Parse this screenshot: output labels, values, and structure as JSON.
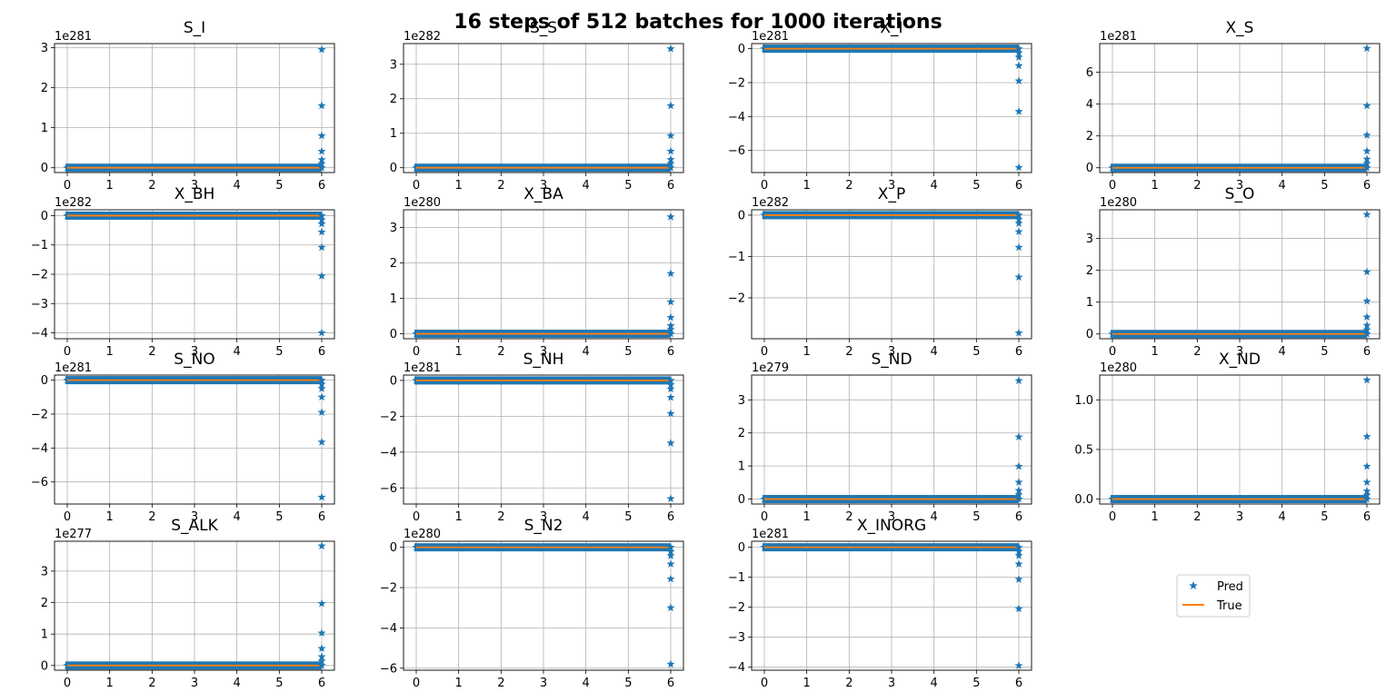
{
  "figure_title": "16 steps of 512 batches for 1000 iterations",
  "legend": {
    "entries": [
      {
        "label": "Pred",
        "color": "#1f77b4",
        "marker": "star"
      },
      {
        "label": "True",
        "color": "#ff7f0e",
        "marker": "line"
      }
    ],
    "placement": "empty 16th panel, center"
  },
  "colors": {
    "pred": "#1f77b4",
    "true": "#ff7f0e",
    "grid": "#b0b0b0"
  },
  "chart_data": [
    {
      "type": "scatter",
      "title": "S_I",
      "offset": "1e281",
      "xlim": [
        -0.3,
        6.3
      ],
      "ylim": [
        -0.12,
        3.1
      ],
      "xticks": [
        0,
        1,
        2,
        3,
        4,
        5,
        6
      ],
      "yticks": [
        0,
        1,
        2,
        3
      ],
      "ytick_labels": [
        "0",
        "1",
        "2",
        "3"
      ],
      "grid": true,
      "x_constant_until": 5.95,
      "pred_tail_x": 6.0,
      "pred_tail_y": [
        0.0,
        0.1,
        0.2,
        0.41,
        0.8,
        1.55,
        2.95
      ],
      "true_y": 0.0
    },
    {
      "type": "scatter",
      "title": "S_S",
      "offset": "1e282",
      "xlim": [
        -0.3,
        6.3
      ],
      "ylim": [
        -0.14,
        3.6
      ],
      "xticks": [
        0,
        1,
        2,
        3,
        4,
        5,
        6
      ],
      "yticks": [
        0,
        1,
        2,
        3
      ],
      "ytick_labels": [
        "0",
        "1",
        "2",
        "3"
      ],
      "grid": true,
      "x_constant_until": 5.95,
      "pred_tail_x": 6.0,
      "pred_tail_y": [
        0.0,
        0.12,
        0.24,
        0.48,
        0.93,
        1.8,
        3.45
      ],
      "true_y": 0.0
    },
    {
      "type": "scatter",
      "title": "X_I",
      "offset": "1e281",
      "xlim": [
        -0.3,
        6.3
      ],
      "ylim": [
        -7.3,
        0.3
      ],
      "xticks": [
        0,
        1,
        2,
        3,
        4,
        5,
        6
      ],
      "yticks": [
        0,
        -2,
        -4,
        -6
      ],
      "ytick_labels": [
        "0",
        "−2",
        "−4",
        "−6"
      ],
      "grid": true,
      "x_constant_until": 5.95,
      "pred_tail_x": 6.0,
      "pred_tail_y": [
        0.0,
        -0.25,
        -0.5,
        -1.0,
        -1.9,
        -3.7,
        -7.0
      ],
      "true_y": 0.0
    },
    {
      "type": "scatter",
      "title": "X_S",
      "offset": "1e281",
      "xlim": [
        -0.3,
        6.3
      ],
      "ylim": [
        -0.3,
        7.8
      ],
      "xticks": [
        0,
        1,
        2,
        3,
        4,
        5,
        6
      ],
      "yticks": [
        0,
        2,
        4,
        6
      ],
      "ytick_labels": [
        "0",
        "2",
        "4",
        "6"
      ],
      "grid": true,
      "x_constant_until": 5.95,
      "pred_tail_x": 6.0,
      "pred_tail_y": [
        0.0,
        0.27,
        0.54,
        1.05,
        2.05,
        3.9,
        7.5
      ],
      "true_y": 0.0
    },
    {
      "type": "scatter",
      "title": "X_BH",
      "offset": "1e282",
      "xlim": [
        -0.3,
        6.3
      ],
      "ylim": [
        -4.2,
        0.2
      ],
      "xticks": [
        0,
        1,
        2,
        3,
        4,
        5,
        6
      ],
      "yticks": [
        0,
        -1,
        -2,
        -3,
        -4
      ],
      "ytick_labels": [
        "0",
        "−1",
        "−2",
        "−3",
        "−4"
      ],
      "grid": true,
      "x_constant_until": 5.95,
      "pred_tail_x": 6.0,
      "pred_tail_y": [
        0.0,
        -0.14,
        -0.28,
        -0.56,
        -1.08,
        -2.06,
        -4.0
      ],
      "true_y": 0.0
    },
    {
      "type": "scatter",
      "title": "X_BA",
      "offset": "1e280",
      "xlim": [
        -0.3,
        6.3
      ],
      "ylim": [
        -0.14,
        3.5
      ],
      "xticks": [
        0,
        1,
        2,
        3,
        4,
        5,
        6
      ],
      "yticks": [
        0,
        1,
        2,
        3
      ],
      "ytick_labels": [
        "0",
        "1",
        "2",
        "3"
      ],
      "grid": true,
      "x_constant_until": 5.95,
      "pred_tail_x": 6.0,
      "pred_tail_y": [
        0.0,
        0.12,
        0.23,
        0.46,
        0.9,
        1.7,
        3.3
      ],
      "true_y": 0.0
    },
    {
      "type": "scatter",
      "title": "X_P",
      "offset": "1e282",
      "xlim": [
        -0.3,
        6.3
      ],
      "ylim": [
        -2.99,
        0.13
      ],
      "xticks": [
        0,
        1,
        2,
        3,
        4,
        5,
        6
      ],
      "yticks": [
        0,
        -1,
        -2
      ],
      "ytick_labels": [
        "0",
        "−1",
        "−2"
      ],
      "grid": true,
      "x_constant_until": 5.95,
      "pred_tail_x": 6.0,
      "pred_tail_y": [
        0.0,
        -0.1,
        -0.2,
        -0.4,
        -0.78,
        -1.5,
        -2.85
      ],
      "true_y": 0.0
    },
    {
      "type": "scatter",
      "title": "S_O",
      "offset": "1e280",
      "xlim": [
        -0.3,
        6.3
      ],
      "ylim": [
        -0.15,
        3.9
      ],
      "xticks": [
        0,
        1,
        2,
        3,
        4,
        5,
        6
      ],
      "yticks": [
        0,
        1,
        2,
        3
      ],
      "ytick_labels": [
        "0",
        "1",
        "2",
        "3"
      ],
      "grid": true,
      "x_constant_until": 5.95,
      "pred_tail_x": 6.0,
      "pred_tail_y": [
        0.0,
        0.13,
        0.27,
        0.53,
        1.03,
        1.95,
        3.75
      ],
      "true_y": 0.0
    },
    {
      "type": "scatter",
      "title": "S_NO",
      "offset": "1e281",
      "xlim": [
        -0.3,
        6.3
      ],
      "ylim": [
        -7.3,
        0.3
      ],
      "xticks": [
        0,
        1,
        2,
        3,
        4,
        5,
        6
      ],
      "yticks": [
        0,
        -2,
        -4,
        -6
      ],
      "ytick_labels": [
        "0",
        "−2",
        "−4",
        "−6"
      ],
      "grid": true,
      "x_constant_until": 5.95,
      "pred_tail_x": 6.0,
      "pred_tail_y": [
        0.0,
        -0.25,
        -0.5,
        -1.0,
        -1.9,
        -3.65,
        -6.9
      ],
      "true_y": 0.0
    },
    {
      "type": "scatter",
      "title": "S_NH",
      "offset": "1e281",
      "xlim": [
        -0.3,
        6.3
      ],
      "ylim": [
        -6.9,
        0.3
      ],
      "xticks": [
        0,
        1,
        2,
        3,
        4,
        5,
        6
      ],
      "yticks": [
        0,
        -2,
        -4,
        -6
      ],
      "ytick_labels": [
        "0",
        "−2",
        "−4",
        "−6"
      ],
      "grid": true,
      "x_constant_until": 5.95,
      "pred_tail_x": 6.0,
      "pred_tail_y": [
        0.0,
        -0.24,
        -0.48,
        -0.95,
        -1.85,
        -3.5,
        -6.6
      ],
      "true_y": 0.0
    },
    {
      "type": "scatter",
      "title": "S_ND",
      "offset": "1e279",
      "xlim": [
        -0.3,
        6.3
      ],
      "ylim": [
        -0.15,
        3.75
      ],
      "xticks": [
        0,
        1,
        2,
        3,
        4,
        5,
        6
      ],
      "yticks": [
        0,
        1,
        2,
        3
      ],
      "ytick_labels": [
        "0",
        "1",
        "2",
        "3"
      ],
      "grid": true,
      "x_constant_until": 5.95,
      "pred_tail_x": 6.0,
      "pred_tail_y": [
        0.0,
        0.13,
        0.26,
        0.51,
        0.99,
        1.88,
        3.58
      ],
      "true_y": 0.0
    },
    {
      "type": "scatter",
      "title": "X_ND",
      "offset": "1e280",
      "xlim": [
        -0.3,
        6.3
      ],
      "ylim": [
        -0.05,
        1.25
      ],
      "xticks": [
        0,
        1,
        2,
        3,
        4,
        5,
        6
      ],
      "yticks": [
        0,
        0.5,
        1.0
      ],
      "ytick_labels": [
        "0.0",
        "0.5",
        "1.0"
      ],
      "grid": true,
      "x_constant_until": 5.95,
      "pred_tail_x": 6.0,
      "pred_tail_y": [
        0.0,
        0.04,
        0.08,
        0.17,
        0.33,
        0.63,
        1.2
      ],
      "true_y": 0.0
    },
    {
      "type": "scatter",
      "title": "S_ALK",
      "offset": "1e277",
      "xlim": [
        -0.3,
        6.3
      ],
      "ylim": [
        -0.15,
        3.95
      ],
      "xticks": [
        0,
        1,
        2,
        3,
        4,
        5,
        6
      ],
      "yticks": [
        0,
        1,
        2,
        3
      ],
      "ytick_labels": [
        "0",
        "1",
        "2",
        "3"
      ],
      "grid": true,
      "x_constant_until": 5.95,
      "pred_tail_x": 6.0,
      "pred_tail_y": [
        0.0,
        0.14,
        0.28,
        0.54,
        1.03,
        1.97,
        3.8
      ],
      "true_y": 0.0
    },
    {
      "type": "scatter",
      "title": "S_N2",
      "offset": "1e280",
      "xlim": [
        -0.3,
        6.3
      ],
      "ylim": [
        -6.1,
        0.3
      ],
      "xticks": [
        0,
        1,
        2,
        3,
        4,
        5,
        6
      ],
      "yticks": [
        0,
        -2,
        -4,
        -6
      ],
      "ytick_labels": [
        "0",
        "−2",
        "−4",
        "−6"
      ],
      "grid": true,
      "x_constant_until": 5.95,
      "pred_tail_x": 6.0,
      "pred_tail_y": [
        0.0,
        -0.21,
        -0.42,
        -0.83,
        -1.57,
        -3.0,
        -5.8
      ],
      "true_y": 0.0
    },
    {
      "type": "scatter",
      "title": "X_INORG",
      "offset": "1e281",
      "xlim": [
        -0.3,
        6.3
      ],
      "ylim": [
        -4.1,
        0.2
      ],
      "xticks": [
        0,
        1,
        2,
        3,
        4,
        5,
        6
      ],
      "yticks": [
        0,
        -1,
        -2,
        -3,
        -4
      ],
      "ytick_labels": [
        "0",
        "−1",
        "−2",
        "−3",
        "−4"
      ],
      "grid": true,
      "x_constant_until": 5.95,
      "pred_tail_x": 6.0,
      "pred_tail_y": [
        0.0,
        -0.14,
        -0.28,
        -0.56,
        -1.07,
        -2.05,
        -3.95
      ],
      "true_y": 0.0
    }
  ]
}
